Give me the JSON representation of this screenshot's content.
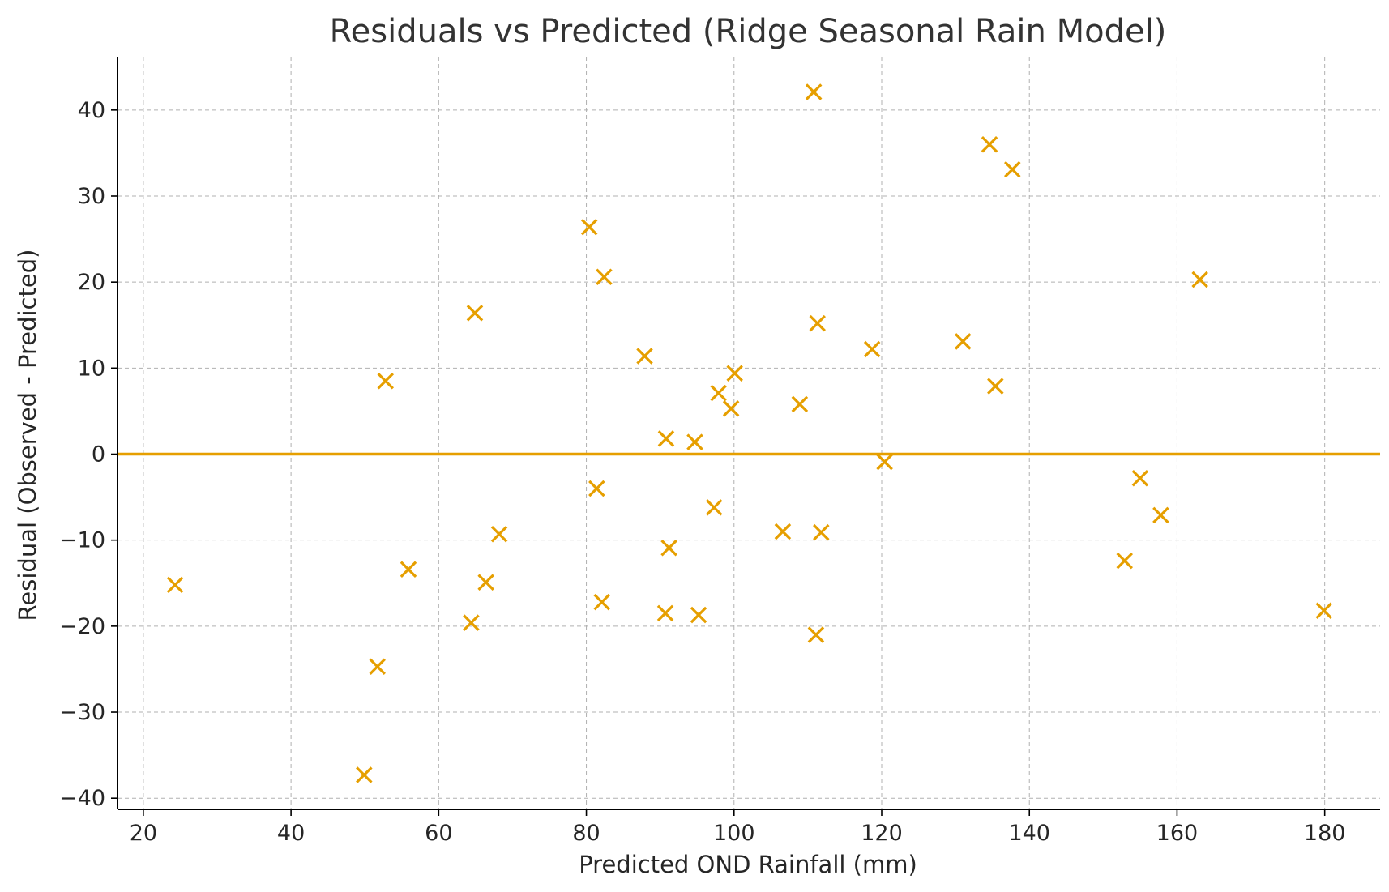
{
  "chart_data": {
    "type": "scatter",
    "title": "Residuals vs Predicted (Ridge Seasonal Rain Model)",
    "xlabel": "Predicted OND Rainfall (mm)",
    "ylabel": "Residual (Observed - Predicted)",
    "xlim": [
      16.5,
      187.5
    ],
    "ylim": [
      -41.3,
      46.2
    ],
    "xticks": [
      20,
      40,
      60,
      80,
      100,
      120,
      140,
      160,
      180
    ],
    "xtick_labels": [
      "20",
      "40",
      "60",
      "80",
      "100",
      "120",
      "140",
      "160",
      "180"
    ],
    "yticks": [
      -40,
      -30,
      -20,
      -10,
      0,
      10,
      20,
      30,
      40
    ],
    "ytick_labels": [
      "−40",
      "−30",
      "−20",
      "−10",
      "0",
      "10",
      "20",
      "30",
      "40"
    ],
    "grid": true,
    "reference_line": {
      "y": 0,
      "color": "#E69F00"
    },
    "marker": "x",
    "color": "#E69F00",
    "points": [
      {
        "x": 24.3,
        "y": -15.2
      },
      {
        "x": 49.9,
        "y": -37.3
      },
      {
        "x": 51.7,
        "y": -24.7
      },
      {
        "x": 52.8,
        "y": 8.5
      },
      {
        "x": 55.9,
        "y": -13.4
      },
      {
        "x": 64.4,
        "y": -19.6
      },
      {
        "x": 64.9,
        "y": 16.4
      },
      {
        "x": 66.4,
        "y": -14.9
      },
      {
        "x": 68.2,
        "y": -9.3
      },
      {
        "x": 80.4,
        "y": 26.4
      },
      {
        "x": 81.4,
        "y": -4.0
      },
      {
        "x": 82.1,
        "y": -17.2
      },
      {
        "x": 82.4,
        "y": 20.6
      },
      {
        "x": 87.9,
        "y": 11.4
      },
      {
        "x": 90.7,
        "y": -18.5
      },
      {
        "x": 90.8,
        "y": 1.8
      },
      {
        "x": 91.2,
        "y": -10.9
      },
      {
        "x": 94.7,
        "y": 1.4
      },
      {
        "x": 95.2,
        "y": -18.7
      },
      {
        "x": 97.3,
        "y": -6.2
      },
      {
        "x": 97.9,
        "y": 7.1
      },
      {
        "x": 99.6,
        "y": 5.3
      },
      {
        "x": 100.1,
        "y": 9.4
      },
      {
        "x": 106.6,
        "y": -9.0
      },
      {
        "x": 108.9,
        "y": 5.8
      },
      {
        "x": 110.8,
        "y": 42.1
      },
      {
        "x": 111.1,
        "y": -21.0
      },
      {
        "x": 111.3,
        "y": 15.2
      },
      {
        "x": 111.8,
        "y": -9.1
      },
      {
        "x": 118.7,
        "y": 12.2
      },
      {
        "x": 120.4,
        "y": -0.9
      },
      {
        "x": 131.0,
        "y": 13.1
      },
      {
        "x": 134.6,
        "y": 36.0
      },
      {
        "x": 135.4,
        "y": 7.9
      },
      {
        "x": 137.7,
        "y": 33.1
      },
      {
        "x": 152.9,
        "y": -12.4
      },
      {
        "x": 155.0,
        "y": -2.8
      },
      {
        "x": 157.8,
        "y": -7.1
      },
      {
        "x": 163.1,
        "y": 20.3
      },
      {
        "x": 179.9,
        "y": -18.2
      }
    ]
  }
}
